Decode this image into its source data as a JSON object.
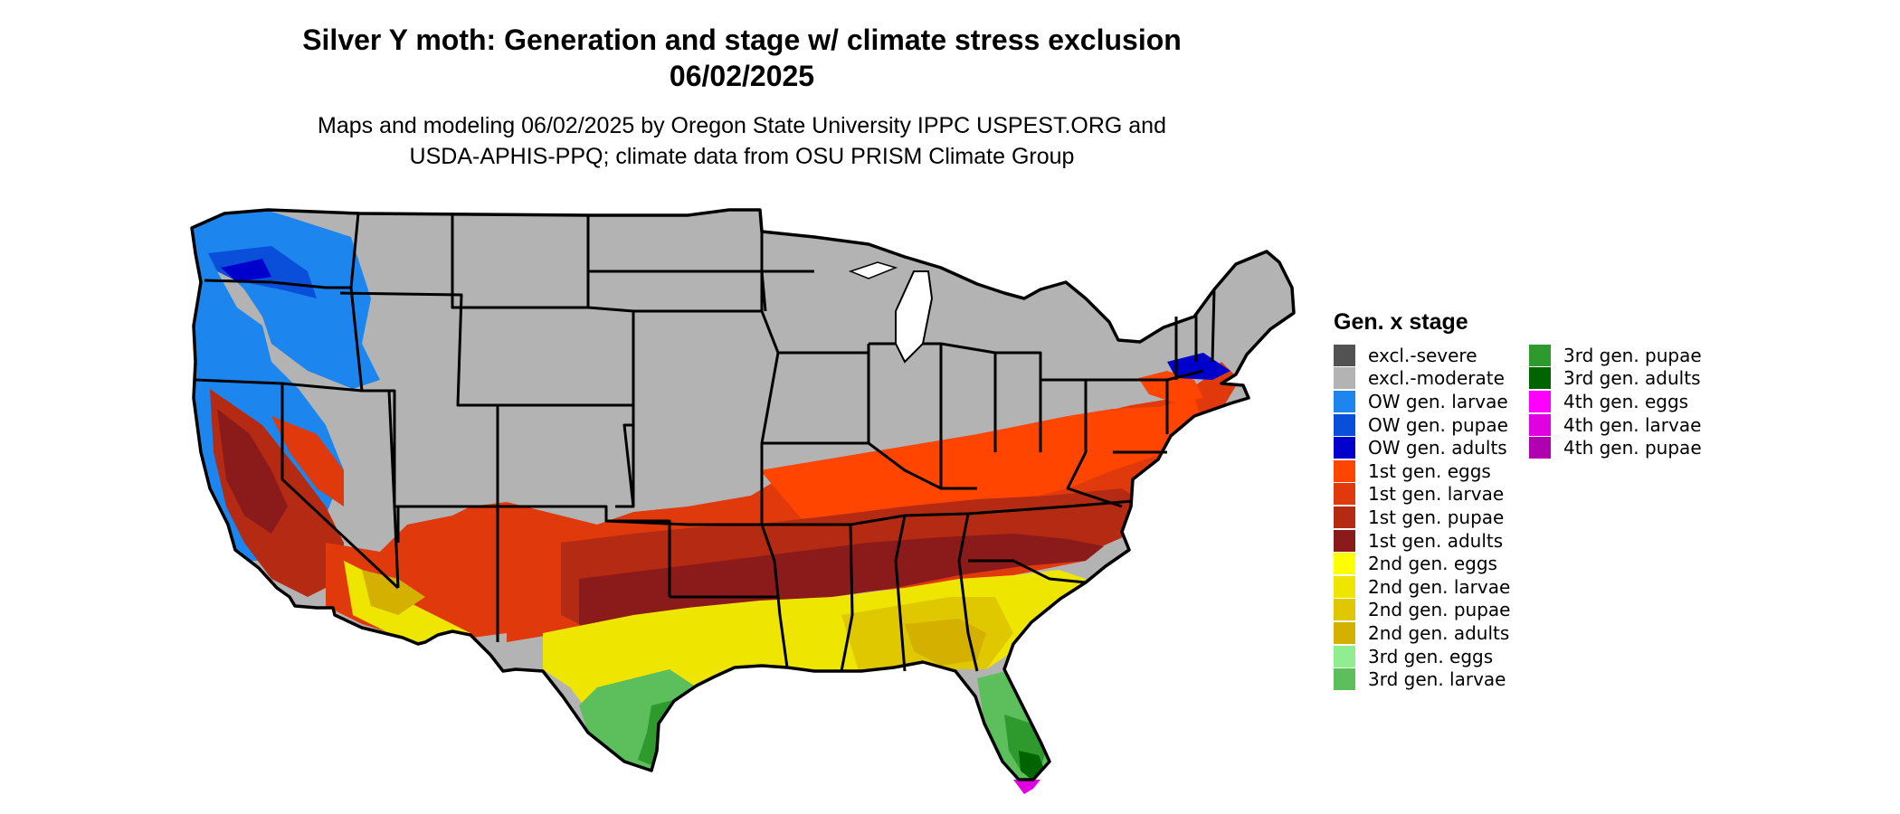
{
  "title": {
    "line1": "Silver Y moth: Generation and stage w/ climate stress exclusion",
    "line2": "06/02/2025"
  },
  "subtitle": {
    "line1": "Maps and modeling 06/02/2025 by Oregon State University IPPC USPEST.ORG and",
    "line2": "USDA-APHIS-PPQ; climate data from OSU PRISM Climate Group"
  },
  "legend": {
    "title": "Gen. x stage",
    "items": [
      {
        "label": "excl.-severe",
        "color": "#525252"
      },
      {
        "label": "excl.-moderate",
        "color": "#b3b3b3"
      },
      {
        "label": "OW gen. larvae",
        "color": "#1c86ee"
      },
      {
        "label": "OW gen. pupae",
        "color": "#0a4fd9"
      },
      {
        "label": "OW gen. adults",
        "color": "#0000cd"
      },
      {
        "label": "1st gen. eggs",
        "color": "#ff4500"
      },
      {
        "label": "1st gen. larvae",
        "color": "#e03a0c"
      },
      {
        "label": "1st gen. pupae",
        "color": "#b52a12"
      },
      {
        "label": "1st gen. adults",
        "color": "#8b1a1a"
      },
      {
        "label": "2nd gen. eggs",
        "color": "#ffff00"
      },
      {
        "label": "2nd gen. larvae",
        "color": "#eee600"
      },
      {
        "label": "2nd gen. pupae",
        "color": "#e0c800"
      },
      {
        "label": "2nd gen. adults",
        "color": "#d4b000"
      },
      {
        "label": "3rd gen. eggs",
        "color": "#90ee90"
      },
      {
        "label": "3rd gen. larvae",
        "color": "#5cbf5c"
      },
      {
        "label": "3rd gen. pupae",
        "color": "#2e9a2e"
      },
      {
        "label": "3rd gen. adults",
        "color": "#006400"
      },
      {
        "label": "4th gen. eggs",
        "color": "#ff00ff"
      },
      {
        "label": "4th gen. larvae",
        "color": "#e000e0"
      },
      {
        "label": "4th gen. pupae",
        "color": "#b000b0"
      }
    ]
  }
}
